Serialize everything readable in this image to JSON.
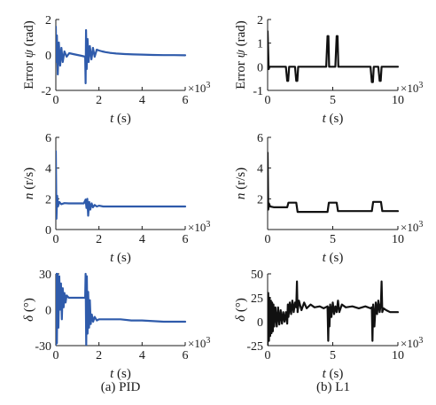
{
  "figure": {
    "captions": [
      "(a) PID",
      "(b) L1"
    ],
    "multiplier": "×10³"
  },
  "chart_data": [
    {
      "id": "a1",
      "type": "line",
      "column": "PID",
      "xlabel": "t (s)",
      "ylabel": "Error ψ (rad)",
      "xlim": [
        0,
        6
      ],
      "ylim": [
        -2,
        2
      ],
      "xticks": [
        0,
        2,
        4,
        6
      ],
      "yticks": [
        -2,
        0,
        2
      ],
      "x_multiplier": "×10³",
      "color": "#2f5bab",
      "series": [
        {
          "x": [
            0,
            0.02,
            0.05,
            0.09,
            0.14,
            0.2,
            0.26,
            0.32,
            0.4,
            0.5,
            0.62,
            0.8,
            1.0,
            1.2,
            1.36,
            1.38,
            1.4,
            1.43,
            1.47,
            1.52,
            1.58,
            1.65,
            1.72,
            1.8,
            1.9,
            2.0,
            2.15,
            2.3,
            2.5,
            2.8,
            3.2,
            3.6,
            4.0,
            4.5,
            5.0,
            5.5,
            6.0
          ],
          "y": [
            1.6,
            -0.4,
            1.1,
            -1.1,
            0.7,
            -0.6,
            0.4,
            -0.4,
            0.2,
            -0.1,
            0.1,
            0.05,
            0.0,
            -0.05,
            -0.1,
            -1.6,
            1.4,
            -0.8,
            0.9,
            -0.4,
            0.5,
            -0.25,
            0.4,
            -0.1,
            0.3,
            0.25,
            0.2,
            0.16,
            0.12,
            0.08,
            0.05,
            0.03,
            0.02,
            0.0,
            -0.01,
            -0.01,
            -0.02
          ]
        }
      ]
    },
    {
      "id": "b1",
      "type": "line",
      "column": "L1",
      "xlabel": "t (s)",
      "ylabel": "Error ψ (rad)",
      "xlim": [
        0,
        10
      ],
      "ylim": [
        -1,
        2
      ],
      "xticks": [
        0,
        5,
        10
      ],
      "yticks": [
        -1,
        0,
        1,
        2
      ],
      "x_multiplier": "×10³",
      "color": "#111111",
      "series": [
        {
          "x": [
            0,
            0.08,
            0.15,
            0.3,
            1.4,
            1.5,
            1.58,
            1.65,
            1.7,
            2.1,
            2.2,
            2.28,
            2.35,
            2.4,
            4.5,
            4.6,
            4.67,
            4.72,
            5.2,
            5.3,
            5.37,
            5.43,
            7.9,
            8.0,
            8.08,
            8.15,
            8.5,
            8.6,
            8.68,
            8.75,
            10.0
          ],
          "y": [
            1.5,
            -0.1,
            0.0,
            0.0,
            0.0,
            -0.6,
            -0.6,
            0.0,
            0.0,
            0.0,
            -0.6,
            -0.6,
            0.0,
            0.0,
            0.0,
            1.3,
            1.3,
            0.0,
            0.0,
            1.3,
            1.3,
            0.0,
            0.0,
            -0.65,
            -0.65,
            0.0,
            0.0,
            -0.6,
            -0.6,
            0.0,
            0.0
          ]
        }
      ]
    },
    {
      "id": "a2",
      "type": "line",
      "column": "PID",
      "xlabel": "t (s)",
      "ylabel": "n (r/s)",
      "xlim": [
        0,
        6
      ],
      "ylim": [
        0,
        6
      ],
      "xticks": [
        0,
        2,
        4,
        6
      ],
      "yticks": [
        0,
        2,
        4,
        6
      ],
      "x_multiplier": "×10³",
      "color": "#2f5bab",
      "series": [
        {
          "x": [
            0,
            0.03,
            0.06,
            0.1,
            0.16,
            0.25,
            0.4,
            0.6,
            1.0,
            1.3,
            1.38,
            1.42,
            1.46,
            1.5,
            1.55,
            1.6,
            1.66,
            1.72,
            1.8,
            1.9,
            2.0,
            2.2,
            2.5,
            3.0,
            4.0,
            5.0,
            6.0
          ],
          "y": [
            5.1,
            0.7,
            2.2,
            1.5,
            1.8,
            1.65,
            1.72,
            1.7,
            1.7,
            1.7,
            1.95,
            1.4,
            2.0,
            0.9,
            1.8,
            1.3,
            1.7,
            1.45,
            1.6,
            1.5,
            1.55,
            1.5,
            1.5,
            1.5,
            1.5,
            1.5,
            1.5
          ]
        }
      ]
    },
    {
      "id": "b2",
      "type": "line",
      "column": "L1",
      "xlabel": "t (s)",
      "ylabel": "n (r/s)",
      "xlim": [
        0,
        10
      ],
      "ylim": [
        0,
        6
      ],
      "xticks": [
        0,
        5,
        10
      ],
      "yticks": [
        2,
        4,
        6
      ],
      "x_multiplier": "×10³",
      "color": "#111111",
      "series": [
        {
          "x": [
            0,
            0.05,
            0.1,
            0.2,
            0.5,
            1.5,
            1.6,
            2.2,
            2.3,
            4.6,
            4.7,
            5.3,
            5.4,
            8.0,
            8.1,
            8.7,
            8.8,
            10.0
          ],
          "y": [
            5.0,
            1.3,
            1.7,
            1.5,
            1.45,
            1.45,
            1.75,
            1.75,
            1.15,
            1.15,
            1.75,
            1.75,
            1.2,
            1.2,
            1.8,
            1.8,
            1.2,
            1.2
          ]
        }
      ]
    },
    {
      "id": "a3",
      "type": "line",
      "column": "PID",
      "xlabel": "t (s)",
      "ylabel": "δ (°)",
      "xlim": [
        0,
        6
      ],
      "ylim": [
        -30,
        30
      ],
      "xticks": [
        0,
        2,
        4,
        6
      ],
      "yticks": [
        -30,
        0,
        30
      ],
      "x_multiplier": "×10³",
      "color": "#2f5bab",
      "series": [
        {
          "x": [
            0,
            0.02,
            0.05,
            0.08,
            0.12,
            0.16,
            0.2,
            0.24,
            0.28,
            0.32,
            0.36,
            0.4,
            0.45,
            0.5,
            0.6,
            0.8,
            1.0,
            1.2,
            1.3,
            1.36,
            1.38,
            1.41,
            1.44,
            1.47,
            1.5,
            1.54,
            1.58,
            1.62,
            1.67,
            1.73,
            1.8,
            1.9,
            2.0,
            2.2,
            2.5,
            3.0,
            3.5,
            4.0,
            5.0,
            6.0
          ],
          "y": [
            -30,
            30,
            -28,
            30,
            -15,
            28,
            0,
            22,
            -8,
            18,
            2,
            14,
            6,
            12,
            10,
            10,
            10,
            10,
            10,
            10,
            30,
            -30,
            28,
            -20,
            15,
            -15,
            8,
            -12,
            -4,
            -10,
            -6,
            -9,
            -8,
            -8,
            -8,
            -8,
            -9,
            -9,
            -10,
            -10
          ]
        }
      ]
    },
    {
      "id": "b3",
      "type": "line",
      "column": "L1",
      "xlabel": "t (s)",
      "ylabel": "δ (°)",
      "xlim": [
        0,
        10
      ],
      "ylim": [
        -25,
        50
      ],
      "xticks": [
        0,
        5,
        10
      ],
      "yticks": [
        -25,
        0,
        25,
        50
      ],
      "x_multiplier": "×10³",
      "color": "#111111",
      "series": [
        {
          "x": [
            0,
            0.05,
            0.1,
            0.15,
            0.2,
            0.25,
            0.3,
            0.35,
            0.4,
            0.45,
            0.5,
            0.6,
            0.7,
            0.8,
            0.9,
            1.0,
            1.1,
            1.2,
            1.3,
            1.4,
            1.5,
            1.55,
            1.6,
            1.7,
            1.8,
            1.9,
            2.0,
            2.1,
            2.2,
            2.25,
            2.3,
            2.4,
            2.6,
            2.8,
            3.0,
            3.3,
            3.6,
            4.0,
            4.3,
            4.6,
            4.65,
            4.7,
            4.75,
            4.8,
            4.9,
            5.0,
            5.1,
            5.2,
            5.3,
            5.4,
            5.5,
            5.7,
            6.0,
            6.5,
            7.0,
            7.5,
            7.9,
            8.0,
            8.05,
            8.1,
            8.2,
            8.3,
            8.4,
            8.5,
            8.6,
            8.7,
            8.75,
            8.8,
            8.9,
            9.1,
            9.4,
            9.7,
            10.0
          ],
          "y": [
            -25,
            30,
            -20,
            25,
            -15,
            22,
            -12,
            20,
            -10,
            18,
            -5,
            15,
            -5,
            15,
            -3,
            12,
            -2,
            10,
            0,
            10,
            -2,
            18,
            5,
            20,
            8,
            22,
            10,
            20,
            15,
            42,
            10,
            22,
            12,
            20,
            14,
            18,
            15,
            16,
            14,
            16,
            -20,
            15,
            -5,
            18,
            5,
            20,
            8,
            16,
            10,
            22,
            10,
            18,
            15,
            16,
            14,
            16,
            14,
            15,
            -20,
            18,
            -5,
            20,
            8,
            22,
            10,
            20,
            42,
            10,
            14,
            12,
            10,
            10,
            10
          ]
        }
      ]
    }
  ]
}
